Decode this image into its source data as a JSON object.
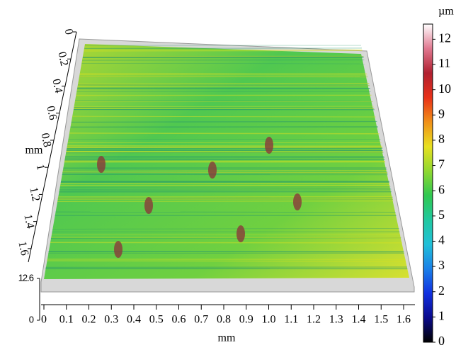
{
  "chart_data": {
    "type": "surface3d",
    "x_label": "mm",
    "y_label": "mm",
    "colorbar_label": "µm",
    "xlim": [
      0,
      1.65
    ],
    "xticks": [
      0,
      0.1,
      0.2,
      0.3,
      0.4,
      0.5,
      0.6,
      0.7,
      0.8,
      0.9,
      {
        "value": 1,
        "label": "1.0"
      },
      1.1,
      1.2,
      1.3,
      1.4,
      1.5,
      1.6
    ],
    "ylim": [
      0,
      1.7
    ],
    "yticks": [
      0,
      0.2,
      0.4,
      0.6,
      0.8,
      1,
      1.2,
      1.4,
      1.6
    ],
    "zlim": [
      0,
      12.6
    ],
    "zticks": [
      0,
      12.6
    ],
    "clim": [
      0,
      12.6
    ],
    "cticks": [
      0,
      1,
      2,
      3,
      4,
      5,
      6,
      7,
      8,
      9,
      10,
      11,
      12
    ],
    "colormap": [
      "#000000",
      "#0a0a8c",
      "#1030e0",
      "#1a80e8",
      "#20c0d8",
      "#20c8a0",
      "#30c850",
      "#90d830",
      "#e8e020",
      "#f09018",
      "#e83018",
      "#b02030",
      "#e07890",
      "#ffffff"
    ]
  }
}
